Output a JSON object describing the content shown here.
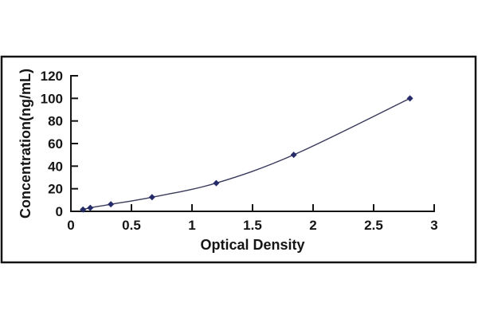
{
  "page": {
    "background_color": "#ffffff",
    "frame_border_color": "#141414"
  },
  "chart_data": {
    "type": "line",
    "subtype": "scatter-line-standard-curve",
    "title": "",
    "xlabel": "Optical Density",
    "ylabel": "Concentration(ng/mL)",
    "xlim": [
      0,
      3
    ],
    "ylim": [
      0,
      120
    ],
    "x_ticks": [
      0,
      0.5,
      1,
      1.5,
      2,
      2.5,
      3
    ],
    "x_tick_labels": [
      "0",
      "0.5",
      "1",
      "1.5",
      "2",
      "2.5",
      "3"
    ],
    "y_ticks": [
      0,
      20,
      40,
      60,
      80,
      100,
      120
    ],
    "y_tick_labels": [
      "0",
      "20",
      "40",
      "60",
      "80",
      "100",
      "120"
    ],
    "grid": false,
    "legend": null,
    "axis_color": "#141414",
    "series": [
      {
        "name": "standard-curve",
        "marker": "diamond",
        "marker_color": "#252b69",
        "line_color": "#3a3a5c",
        "points": [
          {
            "x": 0.1,
            "y": 1.56
          },
          {
            "x": 0.16,
            "y": 3.12
          },
          {
            "x": 0.33,
            "y": 6.25
          },
          {
            "x": 0.67,
            "y": 12.5
          },
          {
            "x": 1.2,
            "y": 25
          },
          {
            "x": 1.84,
            "y": 50
          },
          {
            "x": 2.8,
            "y": 100
          }
        ]
      }
    ]
  }
}
